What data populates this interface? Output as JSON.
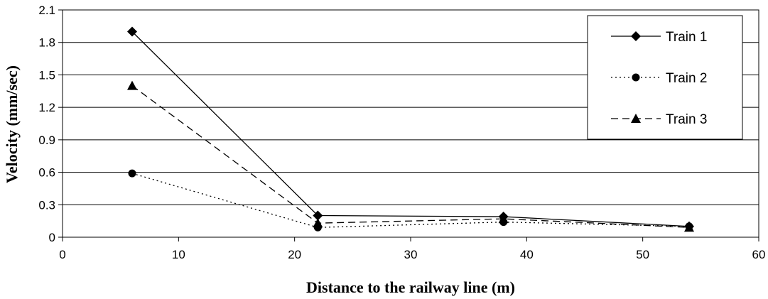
{
  "chart_data": {
    "type": "line",
    "title": "",
    "xlabel": "Distance to the railway line (m)",
    "ylabel": "Velocity (mm/sec)",
    "xlim": [
      0,
      60
    ],
    "ylim": [
      0,
      2.1
    ],
    "xticks": [
      "0",
      "10",
      "20",
      "30",
      "40",
      "50",
      "60"
    ],
    "yticks": [
      "0",
      "0.3",
      "0.6",
      "0.9",
      "1.2",
      "1.5",
      "1.8",
      "2.1"
    ],
    "grid": "horizontal",
    "legend_position": "top-right",
    "series": [
      {
        "name": "Train 1",
        "marker": "diamond",
        "line": "solid",
        "color": "#000000",
        "x": [
          6,
          22,
          38,
          54
        ],
        "y": [
          1.9,
          0.2,
          0.19,
          0.1
        ]
      },
      {
        "name": "Train 2",
        "marker": "circle",
        "line": "dotted",
        "color": "#000000",
        "x": [
          6,
          22,
          38,
          54
        ],
        "y": [
          0.59,
          0.09,
          0.14,
          0.1
        ]
      },
      {
        "name": "Train 3",
        "marker": "triangle",
        "line": "dashed",
        "color": "#000000",
        "x": [
          6,
          22,
          38,
          54
        ],
        "y": [
          1.4,
          0.13,
          0.17,
          0.09
        ]
      }
    ]
  }
}
